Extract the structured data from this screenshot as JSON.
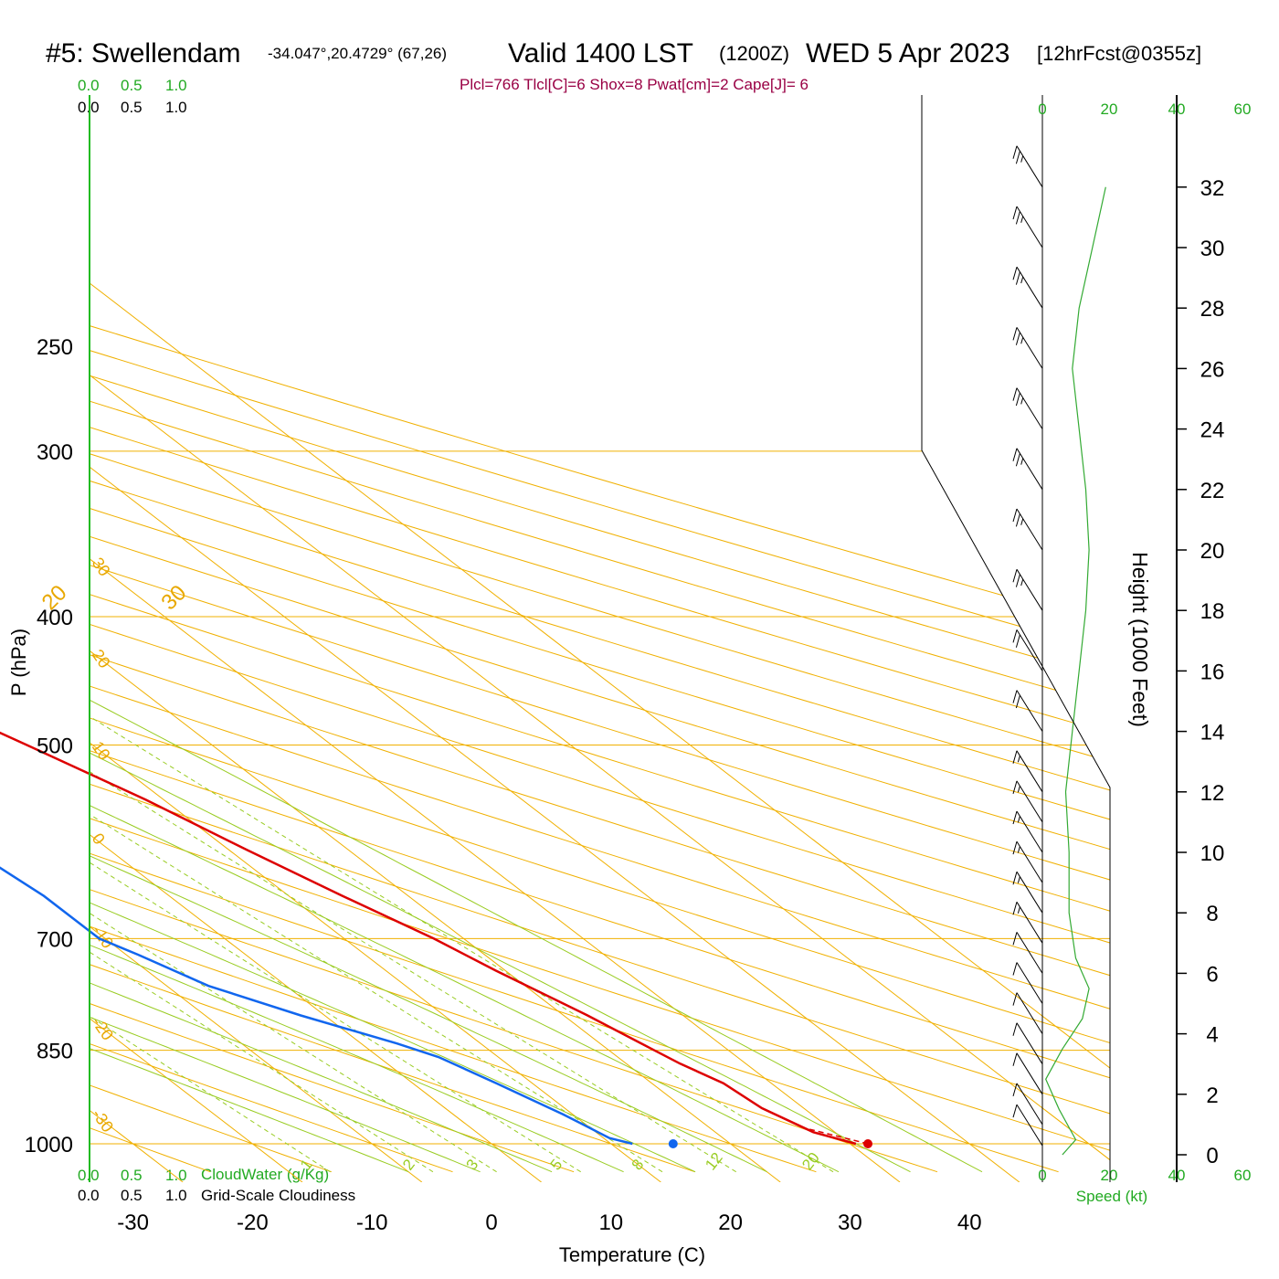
{
  "header": {
    "station": "#5: Swellendam",
    "coords": "-34.047°,20.4729° (67,26)",
    "valid": "Valid 1400 LST",
    "utc": "(1200Z)",
    "date": "WED 5 Apr 2023",
    "forecast": "[12hrFcst@0355z]"
  },
  "params_text": "Plcl=766 Tlcl[C]=6 Shox=8 Pwat[cm]=2 Cape[J]= 6",
  "cloud_scale": {
    "ticks": [
      "0.0",
      "0.5",
      "1.0"
    ]
  },
  "legend": {
    "cloudwater": "CloudWater (g/Kg)",
    "cloudiness": "Grid-Scale Cloudiness"
  },
  "speed_axis": {
    "ticks": [
      "0",
      "20",
      "40",
      "60"
    ],
    "label": "Speed (kt)"
  },
  "colors": {
    "temperature": "#dd0000",
    "dewpoint": "#1166ee",
    "isotherm": "#f0b000",
    "dry_adiabat": "#f0b000",
    "moist_adiabat": "#99cc22",
    "mixing_ratio": "#99cc22",
    "wind_speed": "#33aa33",
    "cloud_axis": "#22aa22"
  },
  "chart_data": {
    "type": "skew-t",
    "xlabel": "Temperature (C)",
    "ylabel": "P (hPa)",
    "y2label": "Height (1000 Feet)",
    "x_ticks": [
      -30,
      -20,
      -10,
      0,
      10,
      20,
      30,
      40
    ],
    "pressure_ticks": [
      250,
      300,
      400,
      500,
      700,
      850,
      1000
    ],
    "height_ticks": [
      0,
      2,
      4,
      6,
      8,
      10,
      12,
      14,
      16,
      18,
      20,
      22,
      24,
      26,
      28,
      30,
      32
    ],
    "isotherm_labels": [
      -30,
      -20,
      -10,
      0,
      10,
      20,
      30
    ],
    "mixing_ratio_labels": [
      1,
      2,
      3,
      5,
      8,
      12,
      20
    ],
    "temperature_profile": [
      {
        "p": 1000,
        "t": 30.5
      },
      {
        "p": 980,
        "t": 28.2
      },
      {
        "p": 940,
        "t": 26.5
      },
      {
        "p": 900,
        "t": 26.0
      },
      {
        "p": 870,
        "t": 24.5
      },
      {
        "p": 850,
        "t": 23.8
      },
      {
        "p": 800,
        "t": 22.0
      },
      {
        "p": 740,
        "t": 19.2
      },
      {
        "p": 700,
        "t": 17.5
      },
      {
        "p": 650,
        "t": 14.5
      },
      {
        "p": 600,
        "t": 11.5
      },
      {
        "p": 550,
        "t": 8.5
      },
      {
        "p": 500,
        "t": 4.5
      },
      {
        "p": 450,
        "t": 0.0
      },
      {
        "p": 400,
        "t": -5.0
      },
      {
        "p": 350,
        "t": -10.5
      },
      {
        "p": 300,
        "t": -17.5
      },
      {
        "p": 260,
        "t": -25.0
      }
    ],
    "dewpoint_profile": [
      {
        "p": 1000,
        "dp": 11.8
      },
      {
        "p": 990,
        "dp": 10.5
      },
      {
        "p": 950,
        "dp": 9.2
      },
      {
        "p": 900,
        "dp": 7.0
      },
      {
        "p": 860,
        "dp": 5.0
      },
      {
        "p": 840,
        "dp": 3.0
      },
      {
        "p": 800,
        "dp": -2.0
      },
      {
        "p": 760,
        "dp": -6.5
      },
      {
        "p": 720,
        "dp": -9.0
      },
      {
        "p": 700,
        "dp": -10.5
      },
      {
        "p": 650,
        "dp": -10.5
      },
      {
        "p": 600,
        "dp": -11.5
      },
      {
        "p": 550,
        "dp": -16.5
      },
      {
        "p": 500,
        "dp": -26.0
      },
      {
        "p": 450,
        "dp": -33.5
      },
      {
        "p": 400,
        "dp": -39.5
      },
      {
        "p": 350,
        "dp": -48.5
      },
      {
        "p": 300,
        "dp": -53.0
      },
      {
        "p": 260,
        "dp": -57.0
      }
    ],
    "surface_temperature": 31.5,
    "surface_dewpoint": 15.2,
    "wind_speed_profile": [
      {
        "h": 0,
        "s": 6
      },
      {
        "h": 0.5,
        "s": 10
      },
      {
        "h": 1.5,
        "s": 5
      },
      {
        "h": 2.5,
        "s": 1
      },
      {
        "h": 3.5,
        "s": 6
      },
      {
        "h": 4.5,
        "s": 12
      },
      {
        "h": 5.5,
        "s": 14
      },
      {
        "h": 6.5,
        "s": 10
      },
      {
        "h": 8,
        "s": 8
      },
      {
        "h": 10,
        "s": 8
      },
      {
        "h": 12,
        "s": 7
      },
      {
        "h": 14,
        "s": 9
      },
      {
        "h": 16,
        "s": 11
      },
      {
        "h": 18,
        "s": 13
      },
      {
        "h": 20,
        "s": 14
      },
      {
        "h": 22,
        "s": 13
      },
      {
        "h": 24,
        "s": 11
      },
      {
        "h": 26,
        "s": 9
      },
      {
        "h": 28,
        "s": 11
      },
      {
        "h": 30,
        "s": 15
      },
      {
        "h": 32,
        "s": 19
      }
    ],
    "wind_barbs": [
      {
        "h": 0.3,
        "spd": 10
      },
      {
        "h": 1,
        "spd": 10
      },
      {
        "h": 2,
        "spd": 10
      },
      {
        "h": 3,
        "spd": 10
      },
      {
        "h": 4,
        "spd": 10
      },
      {
        "h": 5,
        "spd": 10
      },
      {
        "h": 6,
        "spd": 10
      },
      {
        "h": 7,
        "spd": 15
      },
      {
        "h": 8,
        "spd": 15
      },
      {
        "h": 9,
        "spd": 15
      },
      {
        "h": 10,
        "spd": 15
      },
      {
        "h": 11,
        "spd": 15
      },
      {
        "h": 12,
        "spd": 15
      },
      {
        "h": 14,
        "spd": 20
      },
      {
        "h": 16,
        "spd": 20
      },
      {
        "h": 18,
        "spd": 25
      },
      {
        "h": 20,
        "spd": 25
      },
      {
        "h": 22,
        "spd": 25
      },
      {
        "h": 24,
        "spd": 25
      },
      {
        "h": 26,
        "spd": 25
      },
      {
        "h": 28,
        "spd": 25
      },
      {
        "h": 30,
        "spd": 25
      },
      {
        "h": 32,
        "spd": 25
      }
    ]
  }
}
